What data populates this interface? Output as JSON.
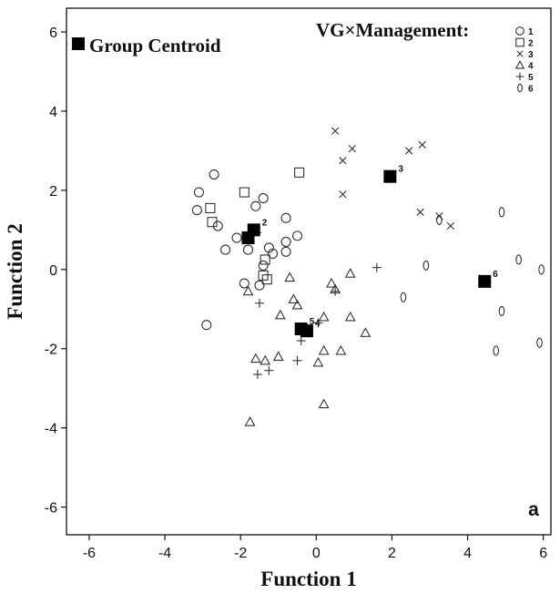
{
  "chart_data": {
    "type": "scatter",
    "xlabel": "Function 1",
    "ylabel": "Function 2",
    "xlim": [
      -6.6,
      6.2
    ],
    "ylim": [
      -6.7,
      6.6
    ],
    "xticks": [
      -6,
      -4,
      -2,
      0,
      2,
      4,
      6
    ],
    "yticks": [
      -6,
      -4,
      -2,
      0,
      2,
      4,
      6
    ],
    "xtick_labels": [
      "-6",
      "-4",
      "-2",
      "0",
      "2",
      "4",
      "6"
    ],
    "ytick_labels": [
      "-6",
      "-4",
      "-2",
      "0",
      "2",
      "4",
      "6"
    ],
    "grid": false,
    "panel_label": "a",
    "legend": {
      "placement": "top-right",
      "title": "VG×Management:",
      "centroid_label": "Group Centroid",
      "items": [
        {
          "label": "1",
          "marker": "circle"
        },
        {
          "label": "2",
          "marker": "square"
        },
        {
          "label": "3",
          "marker": "x"
        },
        {
          "label": "4",
          "marker": "triangle"
        },
        {
          "label": "5",
          "marker": "plus"
        },
        {
          "label": "6",
          "marker": "ellipse"
        }
      ]
    },
    "series": [
      {
        "name": "1",
        "marker": "circle",
        "points": [
          [
            -3.1,
            1.95
          ],
          [
            -3.15,
            1.5
          ],
          [
            -2.7,
            2.4
          ],
          [
            -2.6,
            1.1
          ],
          [
            -2.4,
            0.5
          ],
          [
            -2.1,
            0.8
          ],
          [
            -1.8,
            0.5
          ],
          [
            -1.6,
            1.6
          ],
          [
            -1.4,
            1.8
          ],
          [
            -1.25,
            0.55
          ],
          [
            -1.15,
            0.4
          ],
          [
            -0.8,
            0.7
          ],
          [
            -0.8,
            1.3
          ],
          [
            -0.5,
            0.85
          ],
          [
            -1.4,
            0.1
          ],
          [
            -1.5,
            -0.4
          ],
          [
            -1.9,
            -0.35
          ],
          [
            -2.9,
            -1.4
          ],
          [
            -0.8,
            0.45
          ]
        ]
      },
      {
        "name": "2",
        "marker": "square",
        "points": [
          [
            -1.9,
            1.95
          ],
          [
            -2.8,
            1.55
          ],
          [
            -2.75,
            1.2
          ],
          [
            -1.4,
            -0.15
          ],
          [
            -1.3,
            -0.25
          ],
          [
            -1.35,
            0.25
          ],
          [
            -0.45,
            2.45
          ]
        ]
      },
      {
        "name": "3",
        "marker": "x",
        "points": [
          [
            0.5,
            3.5
          ],
          [
            0.95,
            3.05
          ],
          [
            0.7,
            2.75
          ],
          [
            0.7,
            1.9
          ],
          [
            2.45,
            3.0
          ],
          [
            2.8,
            3.15
          ],
          [
            2.75,
            1.45
          ],
          [
            3.25,
            1.35
          ],
          [
            3.55,
            1.1
          ]
        ]
      },
      {
        "name": "4",
        "marker": "triangle",
        "points": [
          [
            -1.8,
            -0.55
          ],
          [
            -0.7,
            -0.2
          ],
          [
            -0.6,
            -0.75
          ],
          [
            -0.95,
            -1.15
          ],
          [
            -0.5,
            -0.9
          ],
          [
            0.4,
            -0.35
          ],
          [
            0.5,
            -0.5
          ],
          [
            0.9,
            -0.1
          ],
          [
            0.2,
            -1.2
          ],
          [
            0.9,
            -1.2
          ],
          [
            1.3,
            -1.6
          ],
          [
            0.65,
            -2.05
          ],
          [
            0.2,
            -2.05
          ],
          [
            0.05,
            -2.35
          ],
          [
            -1.0,
            -2.2
          ],
          [
            -1.35,
            -2.3
          ],
          [
            -1.6,
            -2.25
          ],
          [
            0.2,
            -3.4
          ],
          [
            -1.75,
            -3.85
          ]
        ]
      },
      {
        "name": "5",
        "marker": "plus",
        "points": [
          [
            -1.5,
            -0.85
          ],
          [
            -0.4,
            -1.8
          ],
          [
            -0.5,
            -2.3
          ],
          [
            -1.25,
            -2.55
          ],
          [
            -1.55,
            -2.65
          ],
          [
            0.5,
            -0.55
          ],
          [
            1.6,
            0.05
          ],
          [
            0.05,
            -1.35
          ]
        ]
      },
      {
        "name": "6",
        "marker": "ellipse",
        "points": [
          [
            4.9,
            1.45
          ],
          [
            3.25,
            1.25
          ],
          [
            2.9,
            0.1
          ],
          [
            5.35,
            0.25
          ],
          [
            5.95,
            0.0
          ],
          [
            2.3,
            -0.7
          ],
          [
            4.9,
            -1.05
          ],
          [
            4.75,
            -2.05
          ],
          [
            5.9,
            -1.85
          ]
        ]
      }
    ],
    "centroids": [
      {
        "label": "1",
        "x": -1.8,
        "y": 0.8
      },
      {
        "label": "2",
        "x": -1.65,
        "y": 1.0
      },
      {
        "label": "3",
        "x": 1.95,
        "y": 2.35
      },
      {
        "label": "4",
        "x": -0.25,
        "y": -1.55
      },
      {
        "label": "5",
        "x": -0.4,
        "y": -1.5
      },
      {
        "label": "6",
        "x": 4.45,
        "y": -0.3
      }
    ]
  }
}
